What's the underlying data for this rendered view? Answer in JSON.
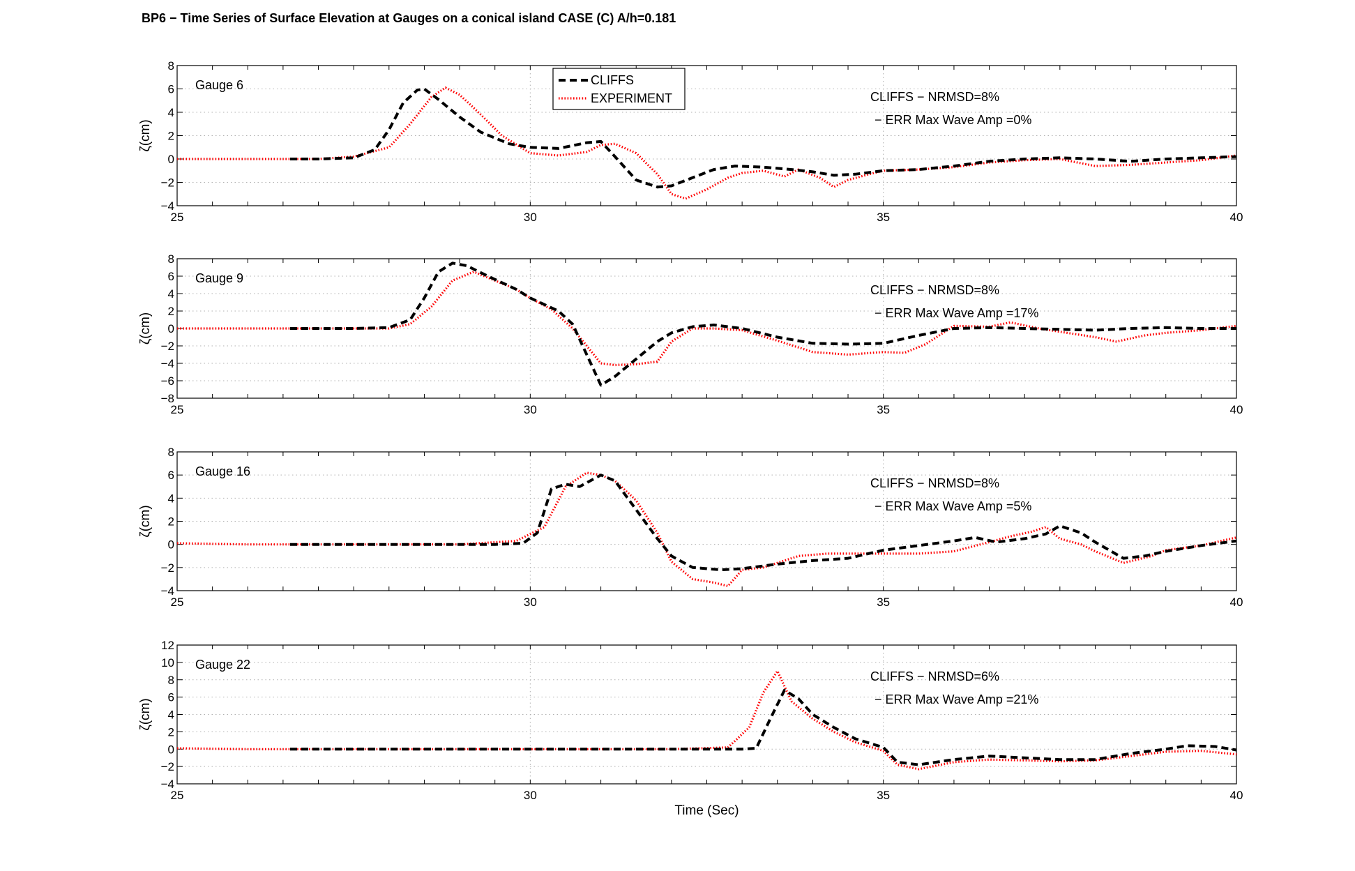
{
  "figure_title": "BP6 − Time Series of Surface Elevation at Gauges on a conical island  CASE (C) A/h=0.181",
  "colors": {
    "cliffs": "#000000",
    "experiment": "#ff0000",
    "grid": "#b0b0b0",
    "axes": "#000000"
  },
  "legend": {
    "items": [
      {
        "label": "CLIFFS",
        "style": "dashed-black"
      },
      {
        "label": "EXPERIMENT",
        "style": "dotted-red"
      }
    ]
  },
  "chart_data": [
    {
      "type": "line",
      "gauge_label": "Gauge 6",
      "annotation_1": "CLIFFS − NRMSD=8%",
      "annotation_2": "− ERR Max Wave Amp =0%",
      "xlabel": "",
      "ylabel": "ζ(cm)",
      "xlim": [
        25,
        40
      ],
      "ylim": [
        -4,
        8
      ],
      "xticks": [
        25,
        30,
        35,
        40
      ],
      "yticks": [
        -4,
        -2,
        0,
        2,
        4,
        6,
        8
      ],
      "grid": true,
      "series": [
        {
          "name": "CLIFFS",
          "x": [
            26.6,
            27.0,
            27.5,
            27.8,
            28.0,
            28.2,
            28.4,
            28.5,
            28.7,
            29.0,
            29.3,
            29.7,
            30.0,
            30.4,
            30.8,
            31.0,
            31.2,
            31.5,
            31.8,
            32.0,
            32.3,
            32.6,
            32.9,
            33.3,
            33.7,
            34.0,
            34.3,
            34.6,
            35.0,
            35.5,
            36.0,
            36.5,
            37.0,
            37.5,
            38.0,
            38.5,
            39.0,
            39.5,
            40.0
          ],
          "y": [
            0,
            0,
            0.1,
            0.8,
            2.5,
            4.8,
            5.9,
            6.0,
            5.1,
            3.6,
            2.3,
            1.3,
            1.0,
            0.9,
            1.4,
            1.5,
            0.2,
            -1.8,
            -2.4,
            -2.3,
            -1.6,
            -0.9,
            -0.6,
            -0.7,
            -0.9,
            -1.1,
            -1.4,
            -1.3,
            -1.0,
            -0.9,
            -0.6,
            -0.2,
            0,
            0.1,
            0,
            -0.2,
            0,
            0.1,
            0.2
          ]
        },
        {
          "name": "EXPERIMENT",
          "x": [
            25.0,
            26.0,
            27.0,
            27.5,
            28.0,
            28.3,
            28.6,
            28.8,
            29.0,
            29.3,
            29.6,
            30.0,
            30.4,
            30.8,
            31.0,
            31.2,
            31.5,
            31.8,
            32.0,
            32.2,
            32.5,
            32.8,
            33.0,
            33.3,
            33.6,
            33.8,
            34.1,
            34.3,
            34.5,
            34.8,
            35.0,
            35.5,
            36.0,
            36.5,
            37.0,
            37.5,
            38.0,
            38.5,
            39.0,
            39.5,
            40.0
          ],
          "y": [
            0,
            0,
            0,
            0.2,
            1.0,
            3.0,
            5.3,
            6.1,
            5.5,
            3.8,
            2.0,
            0.5,
            0.3,
            0.6,
            1.2,
            1.3,
            0.5,
            -1.3,
            -3.0,
            -3.4,
            -2.6,
            -1.6,
            -1.2,
            -1.0,
            -1.5,
            -0.9,
            -1.6,
            -2.4,
            -1.8,
            -1.3,
            -1.0,
            -0.9,
            -0.7,
            -0.3,
            -0.1,
            0,
            -0.6,
            -0.5,
            -0.3,
            -0.1,
            0.3
          ]
        }
      ]
    },
    {
      "type": "line",
      "gauge_label": "Gauge 9",
      "annotation_1": "CLIFFS − NRMSD=8%",
      "annotation_2": "− ERR Max Wave Amp =17%",
      "xlabel": "",
      "ylabel": "ζ(cm)",
      "xlim": [
        25,
        40
      ],
      "ylim": [
        -8,
        8
      ],
      "xticks": [
        25,
        30,
        35,
        40
      ],
      "yticks": [
        -8,
        -6,
        -4,
        -2,
        0,
        2,
        4,
        6,
        8
      ],
      "grid": true,
      "series": [
        {
          "name": "CLIFFS",
          "x": [
            26.6,
            27.5,
            28.0,
            28.3,
            28.5,
            28.7,
            28.9,
            29.1,
            29.4,
            29.8,
            30.0,
            30.4,
            30.6,
            31.0,
            31.2,
            31.5,
            31.8,
            32.0,
            32.3,
            32.6,
            33.0,
            33.5,
            34.0,
            34.5,
            35.0,
            35.5,
            36.0,
            36.5,
            37.0,
            37.5,
            38.0,
            38.5,
            39.0,
            39.5,
            40.0
          ],
          "y": [
            0,
            0,
            0.1,
            1.0,
            3.5,
            6.5,
            7.5,
            7.2,
            6.0,
            4.5,
            3.5,
            2.0,
            0.5,
            -6.5,
            -5.5,
            -3.5,
            -1.5,
            -0.5,
            0.2,
            0.4,
            0,
            -1.0,
            -1.7,
            -1.8,
            -1.7,
            -0.8,
            0,
            0.1,
            0,
            -0.1,
            -0.2,
            0,
            0.1,
            0,
            0
          ]
        },
        {
          "name": "EXPERIMENT",
          "x": [
            25.0,
            26.0,
            27.0,
            28.0,
            28.3,
            28.6,
            28.9,
            29.2,
            29.5,
            29.8,
            30.0,
            30.3,
            30.6,
            30.9,
            31.0,
            31.2,
            31.5,
            31.8,
            32.0,
            32.3,
            32.6,
            33.0,
            33.5,
            34.0,
            34.5,
            35.0,
            35.3,
            35.6,
            36.0,
            36.5,
            36.8,
            37.2,
            37.6,
            38.0,
            38.3,
            38.7,
            39.0,
            39.5,
            40.0
          ],
          "y": [
            0,
            0,
            0,
            0,
            0.5,
            2.5,
            5.5,
            6.5,
            5.5,
            4.5,
            3.5,
            2.2,
            0,
            -3.0,
            -4.0,
            -4.2,
            -4.1,
            -3.8,
            -1.5,
            0,
            0,
            -0.2,
            -1.4,
            -2.7,
            -3.0,
            -2.7,
            -2.8,
            -1.8,
            0.3,
            0.2,
            0.7,
            0,
            -0.5,
            -1.0,
            -1.5,
            -0.8,
            -0.5,
            -0.2,
            0.3
          ]
        }
      ]
    },
    {
      "type": "line",
      "gauge_label": "Gauge 16",
      "annotation_1": "CLIFFS − NRMSD=8%",
      "annotation_2": "− ERR Max Wave Amp =5%",
      "xlabel": "",
      "ylabel": "ζ(cm)",
      "xlim": [
        25,
        40
      ],
      "ylim": [
        -4,
        8
      ],
      "xticks": [
        25,
        30,
        35,
        40
      ],
      "yticks": [
        -4,
        -2,
        0,
        2,
        4,
        6,
        8
      ],
      "grid": true,
      "series": [
        {
          "name": "CLIFFS",
          "x": [
            26.6,
            27.5,
            28.5,
            29.5,
            29.9,
            30.1,
            30.3,
            30.5,
            30.7,
            31.0,
            31.2,
            31.5,
            31.8,
            32.0,
            32.3,
            32.7,
            33.0,
            33.5,
            34.0,
            34.5,
            35.0,
            35.5,
            36.0,
            36.3,
            36.6,
            37.0,
            37.3,
            37.5,
            37.8,
            38.0,
            38.4,
            38.7,
            39.0,
            39.5,
            40.0
          ],
          "y": [
            0,
            0,
            0,
            0,
            0.1,
            1.0,
            4.8,
            5.2,
            5.0,
            6.0,
            5.5,
            3.0,
            0.5,
            -1.0,
            -2.0,
            -2.2,
            -2.1,
            -1.7,
            -1.4,
            -1.2,
            -0.5,
            -0.1,
            0.3,
            0.6,
            0.2,
            0.5,
            0.9,
            1.6,
            1.0,
            0.2,
            -1.2,
            -1.0,
            -0.6,
            -0.1,
            0.3
          ]
        },
        {
          "name": "EXPERIMENT",
          "x": [
            25.0,
            26.0,
            27.0,
            28.0,
            29.0,
            29.8,
            30.2,
            30.5,
            30.8,
            31.0,
            31.2,
            31.5,
            31.8,
            32.0,
            32.3,
            32.6,
            32.8,
            33.0,
            33.3,
            33.8,
            34.2,
            34.8,
            35.0,
            35.5,
            36.0,
            36.5,
            36.8,
            37.1,
            37.3,
            37.5,
            37.8,
            38.0,
            38.4,
            38.8,
            39.0,
            39.5,
            40.0
          ],
          "y": [
            0.1,
            0,
            0,
            0,
            0,
            0.3,
            1.5,
            5.0,
            6.2,
            6.0,
            5.5,
            3.8,
            1.0,
            -1.5,
            -3.0,
            -3.3,
            -3.6,
            -2.2,
            -2.0,
            -1.0,
            -0.8,
            -0.8,
            -0.8,
            -0.8,
            -0.6,
            0.2,
            0.7,
            1.1,
            1.5,
            0.5,
            0,
            -0.6,
            -1.6,
            -1.0,
            -0.5,
            -0.1,
            0.6
          ]
        }
      ]
    },
    {
      "type": "line",
      "gauge_label": "Gauge 22",
      "annotation_1": "CLIFFS − NRMSD=6%",
      "annotation_2": "− ERR Max Wave Amp =21%",
      "xlabel": "Time (Sec)",
      "ylabel": "ζ(cm)",
      "xlim": [
        25,
        40
      ],
      "ylim": [
        -4,
        12
      ],
      "xticks": [
        25,
        30,
        35,
        40
      ],
      "yticks": [
        -4,
        -2,
        0,
        2,
        4,
        6,
        8,
        10,
        12
      ],
      "grid": true,
      "series": [
        {
          "name": "CLIFFS",
          "x": [
            26.6,
            28.0,
            29.0,
            30.0,
            31.0,
            32.0,
            33.0,
            33.2,
            33.4,
            33.6,
            33.8,
            34.0,
            34.3,
            34.6,
            35.0,
            35.2,
            35.5,
            36.0,
            36.5,
            37.0,
            37.5,
            38.0,
            38.5,
            39.0,
            39.3,
            39.7,
            40.0
          ],
          "y": [
            0,
            0,
            0,
            0,
            0,
            0,
            0,
            0.1,
            3.5,
            6.8,
            5.8,
            4.0,
            2.5,
            1.2,
            0.2,
            -1.5,
            -1.8,
            -1.2,
            -0.8,
            -1.0,
            -1.2,
            -1.2,
            -0.5,
            0,
            0.4,
            0.3,
            -0.1
          ]
        },
        {
          "name": "EXPERIMENT",
          "x": [
            25.0,
            26.0,
            27.0,
            28.0,
            29.0,
            30.0,
            31.0,
            32.0,
            32.8,
            33.1,
            33.3,
            33.5,
            33.7,
            34.0,
            34.3,
            34.6,
            35.0,
            35.2,
            35.5,
            36.0,
            36.5,
            37.0,
            37.5,
            38.0,
            38.5,
            39.0,
            39.5,
            40.0
          ],
          "y": [
            0.1,
            0,
            0,
            0,
            0,
            0,
            0,
            0,
            0.2,
            2.5,
            6.5,
            9.0,
            5.5,
            3.5,
            2.0,
            0.8,
            -0.2,
            -1.8,
            -2.3,
            -1.5,
            -1.2,
            -1.3,
            -1.4,
            -1.3,
            -0.8,
            -0.3,
            -0.2,
            -0.6
          ]
        }
      ]
    }
  ]
}
